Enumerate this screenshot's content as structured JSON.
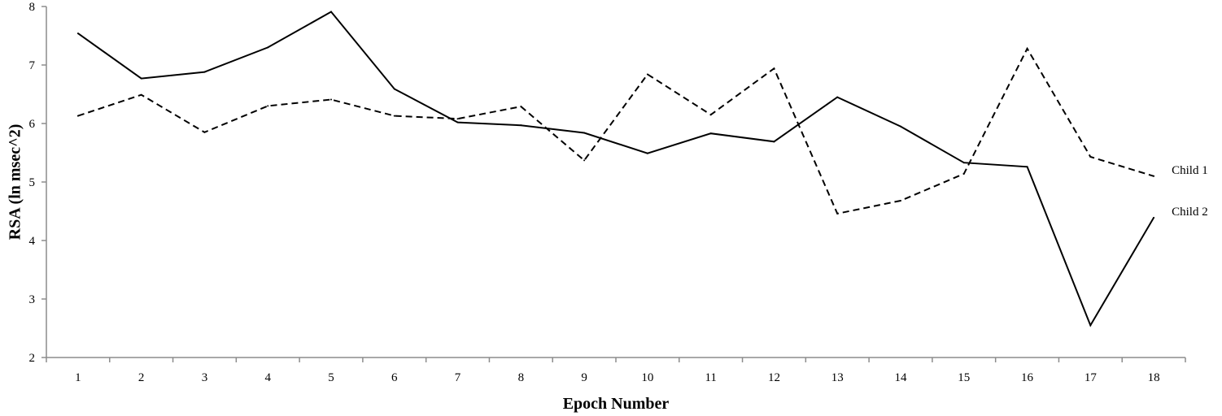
{
  "chart_data": {
    "type": "line",
    "title": "",
    "xlabel": "Epoch Number",
    "ylabel": "RSA (ln msec^2)",
    "ylim": [
      2,
      8
    ],
    "yticks": [
      2,
      3,
      4,
      5,
      6,
      7,
      8
    ],
    "categories": [
      "1",
      "2",
      "3",
      "4",
      "5",
      "6",
      "7",
      "8",
      "9",
      "10",
      "11",
      "12",
      "13",
      "14",
      "15",
      "16",
      "17",
      "18"
    ],
    "grid": false,
    "legend": "inline-right",
    "series": [
      {
        "name": "Child 1",
        "style": "dashed",
        "color": "#000000",
        "values": [
          6.13,
          6.49,
          5.85,
          6.3,
          6.41,
          6.13,
          6.08,
          6.29,
          5.37,
          6.84,
          6.15,
          6.94,
          4.46,
          4.68,
          5.14,
          7.28,
          5.43,
          5.1
        ]
      },
      {
        "name": "Child 2",
        "style": "solid",
        "color": "#000000",
        "values": [
          7.54,
          6.77,
          6.88,
          7.3,
          7.91,
          6.59,
          6.02,
          5.97,
          5.84,
          5.49,
          5.83,
          5.69,
          6.45,
          5.95,
          5.33,
          5.26,
          2.55,
          4.39
        ]
      }
    ]
  }
}
